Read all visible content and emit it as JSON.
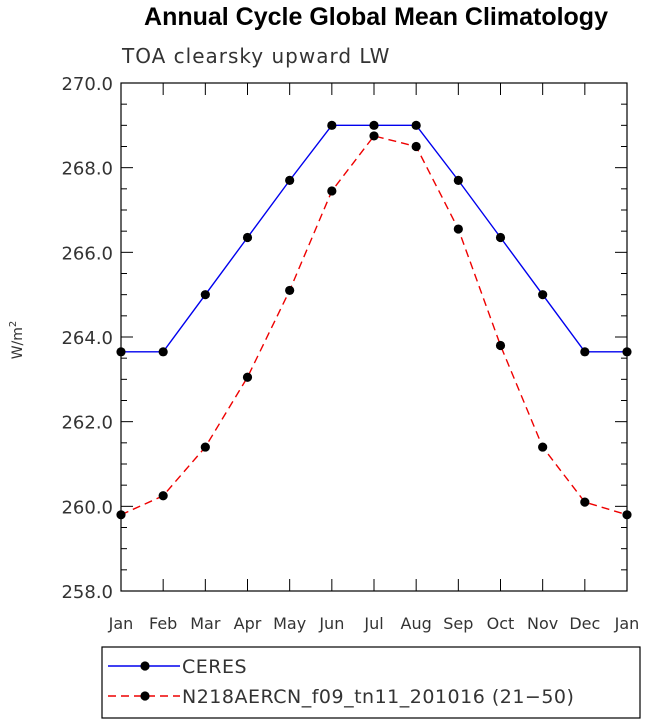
{
  "chart_data": {
    "type": "line",
    "title": "Annual Cycle Global Mean Climatology",
    "subtitle": "TOA clearsky upward LW",
    "ylabel_base": "W/m",
    "ylabel_sup": "2",
    "xlabel": "",
    "categories": [
      "Jan",
      "Feb",
      "Mar",
      "Apr",
      "May",
      "Jun",
      "Jul",
      "Aug",
      "Sep",
      "Oct",
      "Nov",
      "Dec",
      "Jan"
    ],
    "ylim": [
      258.0,
      270.0
    ],
    "yticks": [
      "258.0",
      "260.0",
      "262.0",
      "264.0",
      "266.0",
      "268.0",
      "270.0"
    ],
    "series": [
      {
        "name": "CERES",
        "color": "#0000ee",
        "dash": "solid",
        "values": [
          263.65,
          263.65,
          265.0,
          266.35,
          267.7,
          269.0,
          269.0,
          269.0,
          267.7,
          266.35,
          265.0,
          263.65,
          263.65
        ]
      },
      {
        "name": "N218AERCN_f09_tn11_201016 (21−50)",
        "color": "#ee0000",
        "dash": "dashed",
        "values": [
          259.8,
          260.25,
          261.4,
          263.05,
          265.1,
          267.45,
          268.75,
          268.5,
          266.55,
          263.8,
          261.4,
          260.1,
          259.8
        ]
      }
    ],
    "legend_position": "bottom"
  }
}
